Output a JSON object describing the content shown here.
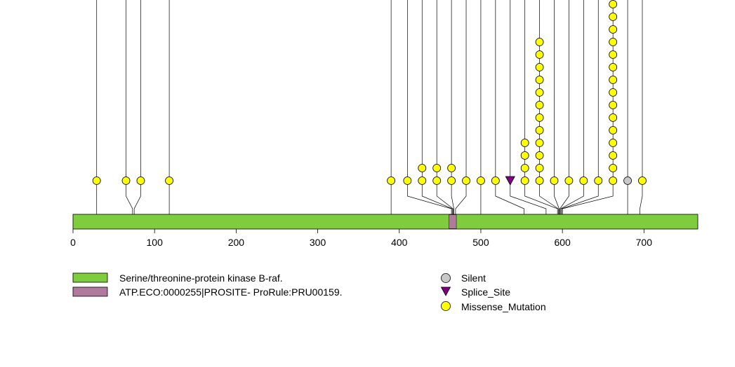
{
  "chart_data": {
    "type": "scatter",
    "protein_length": 766,
    "xlim": [
      0,
      766
    ],
    "ticks": [
      "0",
      "100",
      "200",
      "300",
      "400",
      "500",
      "600",
      "700"
    ],
    "domains": [
      {
        "name": "Serine/threonine-protein kinase B-raf.",
        "start": 1,
        "end": 766,
        "color": "#7fcc3e"
      },
      {
        "name": "ATP.ECO:0000255|PROSITE- ProRule:PRU00159.",
        "start": 462,
        "end": 470,
        "color": "#b07a9c"
      }
    ],
    "mutations": [
      {
        "pos": 29,
        "display": 29,
        "type": "Missense_Mutation",
        "count": 1
      },
      {
        "pos": 73,
        "display": 65,
        "type": "Missense_Mutation",
        "count": 1
      },
      {
        "pos": 75,
        "display": 83,
        "type": "Missense_Mutation",
        "count": 1
      },
      {
        "pos": 118,
        "display": 118,
        "type": "Missense_Mutation",
        "count": 1
      },
      {
        "pos": 390,
        "display": 390,
        "type": "Missense_Mutation",
        "count": 1
      },
      {
        "pos": 464,
        "display": 410,
        "type": "Missense_Mutation",
        "count": 1
      },
      {
        "pos": 465,
        "display": 428,
        "type": "Missense_Mutation",
        "count": 2
      },
      {
        "pos": 466,
        "display": 446,
        "type": "Missense_Mutation",
        "count": 2
      },
      {
        "pos": 467,
        "display": 464,
        "type": "Missense_Mutation",
        "count": 2
      },
      {
        "pos": 469,
        "display": 482,
        "type": "Missense_Mutation",
        "count": 1
      },
      {
        "pos": 500,
        "display": 500,
        "type": "Missense_Mutation",
        "count": 1
      },
      {
        "pos": 553,
        "display": 518,
        "type": "Missense_Mutation",
        "count": 1
      },
      {
        "pos": 580,
        "display": 536,
        "type": "Splice_Site",
        "count": 1
      },
      {
        "pos": 594,
        "display": 554,
        "type": "Missense_Mutation",
        "count": 4
      },
      {
        "pos": 595,
        "display": 572,
        "type": "Missense_Mutation",
        "count": 12
      },
      {
        "pos": 596,
        "display": 590,
        "type": "Missense_Mutation",
        "count": 1
      },
      {
        "pos": 597,
        "display": 608,
        "type": "Missense_Mutation",
        "count": 1
      },
      {
        "pos": 598,
        "display": 626,
        "type": "Missense_Mutation",
        "count": 1
      },
      {
        "pos": 599,
        "display": 644,
        "type": "Missense_Mutation",
        "count": 1
      },
      {
        "pos": 600,
        "display": 662,
        "type": "Missense_Mutation",
        "count": 16
      },
      {
        "pos": 680,
        "display": 680,
        "type": "Silent",
        "count": 1
      },
      {
        "pos": 695,
        "display": 698,
        "type": "Missense_Mutation",
        "count": 1
      }
    ],
    "colors": {
      "Missense_Mutation": "#ffff00",
      "Silent": "#c8c8c8",
      "Splice_Site": "#800080",
      "domain_stroke": "#000000"
    },
    "legend": {
      "domains": [
        "Serine/threonine-protein kinase B-raf.",
        "ATP.ECO:0000255|PROSITE- ProRule:PRU00159."
      ],
      "mutation_types": [
        "Silent",
        "Splice_Site",
        "Missense_Mutation"
      ]
    }
  }
}
